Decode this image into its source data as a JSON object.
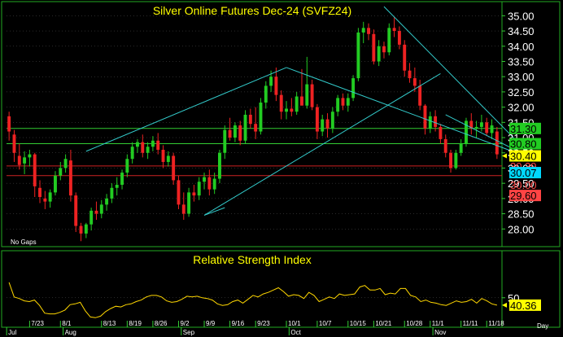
{
  "chart_data": [
    {
      "type": "candlestick",
      "title": "Silver Online Futures Dec-24 (SVFZ24)",
      "note": "No Gaps",
      "ylim": [
        27.5,
        35.25
      ],
      "y_ticks": [
        "28.00",
        "28.50",
        "29.00",
        "29.50",
        "30.00",
        "30.50",
        "31.00",
        "31.50",
        "32.00",
        "32.50",
        "33.00",
        "33.50",
        "34.00",
        "34.50",
        "35.00"
      ],
      "x_date_ticks": [
        "7/23",
        "8/1",
        "8/13",
        "8/19",
        "8/26",
        "9/2",
        "9/9",
        "9/16",
        "9/23",
        "10/1",
        "10/7",
        "10/15",
        "10/21",
        "10/28",
        "11/1",
        "11/11",
        "11/18"
      ],
      "x_month_labels": [
        "Jul",
        "Aug",
        "Sep",
        "Oct",
        "Nov"
      ],
      "x_unit_label": "Day",
      "candles": [
        {
          "o": 31.7,
          "h": 31.85,
          "l": 30.9,
          "c": 31.2
        },
        {
          "o": 31.1,
          "h": 31.25,
          "l": 30.2,
          "c": 30.5
        },
        {
          "o": 30.4,
          "h": 30.8,
          "l": 29.95,
          "c": 30.1
        },
        {
          "o": 30.15,
          "h": 30.55,
          "l": 29.8,
          "c": 30.35
        },
        {
          "o": 30.35,
          "h": 30.6,
          "l": 30.05,
          "c": 30.45
        },
        {
          "o": 30.45,
          "h": 30.5,
          "l": 29.05,
          "c": 29.4
        },
        {
          "o": 29.35,
          "h": 29.6,
          "l": 28.85,
          "c": 29.05
        },
        {
          "o": 29.0,
          "h": 29.25,
          "l": 28.65,
          "c": 28.9
        },
        {
          "o": 28.9,
          "h": 29.3,
          "l": 28.7,
          "c": 29.2
        },
        {
          "o": 29.2,
          "h": 29.9,
          "l": 29.1,
          "c": 29.75
        },
        {
          "o": 29.75,
          "h": 30.2,
          "l": 29.6,
          "c": 30.0
        },
        {
          "o": 30.0,
          "h": 30.45,
          "l": 29.85,
          "c": 30.3
        },
        {
          "o": 30.25,
          "h": 30.6,
          "l": 28.9,
          "c": 29.1
        },
        {
          "o": 29.1,
          "h": 29.2,
          "l": 27.9,
          "c": 28.1
        },
        {
          "o": 28.1,
          "h": 28.2,
          "l": 27.6,
          "c": 27.85
        },
        {
          "o": 27.85,
          "h": 28.2,
          "l": 27.7,
          "c": 28.15
        },
        {
          "o": 28.15,
          "h": 28.7,
          "l": 27.95,
          "c": 28.6
        },
        {
          "o": 28.6,
          "h": 28.9,
          "l": 28.3,
          "c": 28.5
        },
        {
          "o": 28.5,
          "h": 28.95,
          "l": 28.35,
          "c": 28.8
        },
        {
          "o": 28.8,
          "h": 29.15,
          "l": 28.6,
          "c": 29.0
        },
        {
          "o": 29.0,
          "h": 29.5,
          "l": 28.85,
          "c": 29.35
        },
        {
          "o": 29.35,
          "h": 29.7,
          "l": 29.1,
          "c": 29.45
        },
        {
          "o": 29.45,
          "h": 29.95,
          "l": 29.3,
          "c": 29.85
        },
        {
          "o": 29.85,
          "h": 30.45,
          "l": 29.7,
          "c": 30.3
        },
        {
          "o": 30.3,
          "h": 30.85,
          "l": 30.15,
          "c": 30.7
        },
        {
          "o": 30.7,
          "h": 30.95,
          "l": 30.5,
          "c": 30.85
        },
        {
          "o": 30.85,
          "h": 31.1,
          "l": 30.35,
          "c": 30.5
        },
        {
          "o": 30.5,
          "h": 30.85,
          "l": 30.3,
          "c": 30.7
        },
        {
          "o": 30.7,
          "h": 31.05,
          "l": 30.55,
          "c": 30.9
        },
        {
          "o": 30.9,
          "h": 31.15,
          "l": 30.45,
          "c": 30.6
        },
        {
          "o": 30.6,
          "h": 30.75,
          "l": 30.0,
          "c": 30.2
        },
        {
          "o": 30.2,
          "h": 30.55,
          "l": 30.05,
          "c": 30.4
        },
        {
          "o": 30.4,
          "h": 30.5,
          "l": 29.45,
          "c": 29.6
        },
        {
          "o": 29.6,
          "h": 29.75,
          "l": 28.65,
          "c": 28.8
        },
        {
          "o": 28.8,
          "h": 29.2,
          "l": 28.3,
          "c": 28.5
        },
        {
          "o": 28.5,
          "h": 29.35,
          "l": 28.4,
          "c": 29.2
        },
        {
          "o": 29.2,
          "h": 29.45,
          "l": 28.9,
          "c": 29.1
        },
        {
          "o": 29.1,
          "h": 29.7,
          "l": 28.95,
          "c": 29.55
        },
        {
          "o": 29.55,
          "h": 29.85,
          "l": 29.3,
          "c": 29.7
        },
        {
          "o": 29.7,
          "h": 29.95,
          "l": 29.1,
          "c": 29.3
        },
        {
          "o": 29.3,
          "h": 29.85,
          "l": 29.15,
          "c": 29.65
        },
        {
          "o": 29.65,
          "h": 30.6,
          "l": 29.5,
          "c": 30.5
        },
        {
          "o": 30.5,
          "h": 31.4,
          "l": 30.3,
          "c": 31.25
        },
        {
          "o": 31.25,
          "h": 31.65,
          "l": 30.9,
          "c": 31.0
        },
        {
          "o": 31.0,
          "h": 31.5,
          "l": 30.85,
          "c": 31.4
        },
        {
          "o": 31.4,
          "h": 31.55,
          "l": 30.75,
          "c": 30.9
        },
        {
          "o": 30.9,
          "h": 31.9,
          "l": 30.8,
          "c": 31.75
        },
        {
          "o": 31.75,
          "h": 31.95,
          "l": 31.3,
          "c": 31.45
        },
        {
          "o": 31.45,
          "h": 32.0,
          "l": 30.95,
          "c": 31.2
        },
        {
          "o": 31.2,
          "h": 32.3,
          "l": 31.1,
          "c": 32.15
        },
        {
          "o": 32.15,
          "h": 32.85,
          "l": 31.95,
          "c": 32.7
        },
        {
          "o": 32.7,
          "h": 33.2,
          "l": 32.5,
          "c": 33.0
        },
        {
          "o": 33.0,
          "h": 33.3,
          "l": 32.2,
          "c": 32.4
        },
        {
          "o": 32.4,
          "h": 32.55,
          "l": 31.6,
          "c": 31.85
        },
        {
          "o": 31.85,
          "h": 32.2,
          "l": 31.6,
          "c": 31.95
        },
        {
          "o": 31.95,
          "h": 32.3,
          "l": 31.7,
          "c": 31.85
        },
        {
          "o": 31.85,
          "h": 32.5,
          "l": 31.75,
          "c": 32.35
        },
        {
          "o": 32.35,
          "h": 33.25,
          "l": 32.1,
          "c": 32.05
        },
        {
          "o": 32.05,
          "h": 33.65,
          "l": 31.95,
          "c": 32.75
        },
        {
          "o": 32.75,
          "h": 32.9,
          "l": 31.9,
          "c": 32.0
        },
        {
          "o": 32.0,
          "h": 32.1,
          "l": 30.95,
          "c": 31.2
        },
        {
          "o": 31.2,
          "h": 31.75,
          "l": 31.05,
          "c": 31.6
        },
        {
          "o": 31.6,
          "h": 31.8,
          "l": 31.0,
          "c": 31.3
        },
        {
          "o": 31.3,
          "h": 32.0,
          "l": 31.15,
          "c": 31.85
        },
        {
          "o": 31.85,
          "h": 32.4,
          "l": 31.7,
          "c": 32.3
        },
        {
          "o": 32.3,
          "h": 32.45,
          "l": 31.9,
          "c": 32.05
        },
        {
          "o": 32.05,
          "h": 32.45,
          "l": 31.85,
          "c": 32.3
        },
        {
          "o": 32.3,
          "h": 33.05,
          "l": 32.2,
          "c": 32.95
        },
        {
          "o": 32.95,
          "h": 34.6,
          "l": 32.85,
          "c": 34.45
        },
        {
          "o": 34.45,
          "h": 34.8,
          "l": 34.1,
          "c": 34.6
        },
        {
          "o": 34.6,
          "h": 34.75,
          "l": 34.2,
          "c": 34.4
        },
        {
          "o": 34.4,
          "h": 34.55,
          "l": 33.4,
          "c": 33.5
        },
        {
          "o": 33.5,
          "h": 34.2,
          "l": 33.35,
          "c": 34.0
        },
        {
          "o": 34.0,
          "h": 34.15,
          "l": 33.6,
          "c": 33.8
        },
        {
          "o": 33.8,
          "h": 34.75,
          "l": 33.7,
          "c": 34.6
        },
        {
          "o": 34.6,
          "h": 34.95,
          "l": 34.3,
          "c": 34.5
        },
        {
          "o": 34.5,
          "h": 34.65,
          "l": 33.9,
          "c": 34.05
        },
        {
          "o": 34.05,
          "h": 34.2,
          "l": 33.0,
          "c": 33.2
        },
        {
          "o": 33.2,
          "h": 33.45,
          "l": 32.8,
          "c": 32.95
        },
        {
          "o": 32.95,
          "h": 33.3,
          "l": 32.5,
          "c": 32.7
        },
        {
          "o": 32.7,
          "h": 32.9,
          "l": 31.9,
          "c": 32.05
        },
        {
          "o": 32.05,
          "h": 32.1,
          "l": 31.1,
          "c": 31.3
        },
        {
          "o": 31.3,
          "h": 31.85,
          "l": 31.15,
          "c": 31.7
        },
        {
          "o": 31.7,
          "h": 31.9,
          "l": 31.2,
          "c": 31.35
        },
        {
          "o": 31.35,
          "h": 31.45,
          "l": 30.8,
          "c": 30.95
        },
        {
          "o": 30.95,
          "h": 31.1,
          "l": 30.35,
          "c": 30.5
        },
        {
          "o": 30.5,
          "h": 30.6,
          "l": 29.85,
          "c": 30.0
        },
        {
          "o": 30.0,
          "h": 30.6,
          "l": 29.95,
          "c": 30.5
        },
        {
          "o": 30.5,
          "h": 30.95,
          "l": 30.4,
          "c": 30.8
        },
        {
          "o": 30.8,
          "h": 31.65,
          "l": 30.7,
          "c": 31.55
        },
        {
          "o": 31.55,
          "h": 31.8,
          "l": 31.1,
          "c": 31.3
        },
        {
          "o": 31.3,
          "h": 31.55,
          "l": 31.0,
          "c": 31.35
        },
        {
          "o": 31.35,
          "h": 31.75,
          "l": 31.2,
          "c": 31.5
        },
        {
          "o": 31.5,
          "h": 31.65,
          "l": 31.05,
          "c": 31.15
        },
        {
          "o": 31.15,
          "h": 31.6,
          "l": 30.95,
          "c": 31.4
        },
        {
          "o": 31.2,
          "h": 31.35,
          "l": 30.3,
          "c": 30.45
        }
      ],
      "horizontal_levels": [
        {
          "value": 31.3,
          "color": "#33cc33"
        },
        {
          "value": 30.8,
          "color": "#33cc33"
        },
        {
          "value": 30.07,
          "color": "#cc2222"
        },
        {
          "value": 29.75,
          "color": "#cc2222"
        }
      ],
      "price_tags": [
        {
          "label": "31.30",
          "value": 31.3,
          "bg": "#22cc22",
          "fg": "#000000"
        },
        {
          "label": "30.80",
          "value": 30.8,
          "bg": "#22cc22",
          "fg": "#000000"
        },
        {
          "label": "30.40",
          "value": 30.4,
          "bg": "#ffff00",
          "fg": "#000000"
        },
        {
          "label": "30.39",
          "value": 30.07,
          "bg": "#000000",
          "fg": "#ff4444"
        },
        {
          "label": "30.07",
          "value": 29.85,
          "bg": "#00d8ff",
          "fg": "#000000"
        },
        {
          "label": "30.00",
          "value": 29.45,
          "bg": "#000000",
          "fg": "#ff4444"
        },
        {
          "label": "29.60",
          "value": 29.1,
          "bg": "#ff4444",
          "fg": "#000000"
        }
      ],
      "trendlines": [
        {
          "x1": 15,
          "y1": 30.55,
          "x2": 54,
          "y2": 33.3
        },
        {
          "x1": 54,
          "y1": 33.3,
          "x2": 102,
          "y2": 30.3
        },
        {
          "x1": 38,
          "y1": 28.45,
          "x2": 84,
          "y2": 33.1
        },
        {
          "x1": 38,
          "y1": 28.45,
          "x2": 42,
          "y2": 28.7
        },
        {
          "x1": 73,
          "y1": 35.3,
          "x2": 102,
          "y2": 30.35
        },
        {
          "x1": 85,
          "y1": 31.75,
          "x2": 102,
          "y2": 30.3
        }
      ],
      "colors": {
        "up": "#22cc22",
        "down": "#ee2222",
        "trendline": "#33cccc",
        "title": "#ffff00",
        "axis": "#33cc33",
        "tick_text": "#ffffff",
        "grid": "#555555"
      }
    },
    {
      "type": "line",
      "title": "Relative Strength Index",
      "ylim": [
        18,
        90
      ],
      "y_ticks": [
        "50"
      ],
      "last_value_label": "40.36",
      "values": [
        70,
        51,
        49,
        46,
        45,
        47,
        40,
        30,
        29,
        29,
        31,
        34,
        41,
        42,
        44,
        33,
        25,
        24,
        26,
        32,
        36,
        39,
        38,
        41,
        42,
        45,
        47,
        51,
        53,
        53,
        51,
        46,
        44,
        45,
        48,
        52,
        51,
        52,
        50,
        49,
        47,
        42,
        40,
        41,
        45,
        47,
        43,
        48,
        53,
        51,
        55,
        57,
        60,
        63,
        58,
        52,
        54,
        53,
        49,
        57,
        53,
        45,
        48,
        51,
        49,
        55,
        53,
        54,
        55,
        64,
        66,
        60,
        60,
        62,
        54,
        56,
        55,
        62,
        62,
        53,
        51,
        45,
        47,
        44,
        43,
        41,
        40,
        43,
        46,
        44,
        45,
        48,
        43,
        49,
        46,
        42,
        40.36
      ],
      "colors": {
        "line": "#ffd700",
        "tag_bg": "#ffff00",
        "tag_fg": "#000000",
        "title": "#ffff00"
      }
    }
  ]
}
